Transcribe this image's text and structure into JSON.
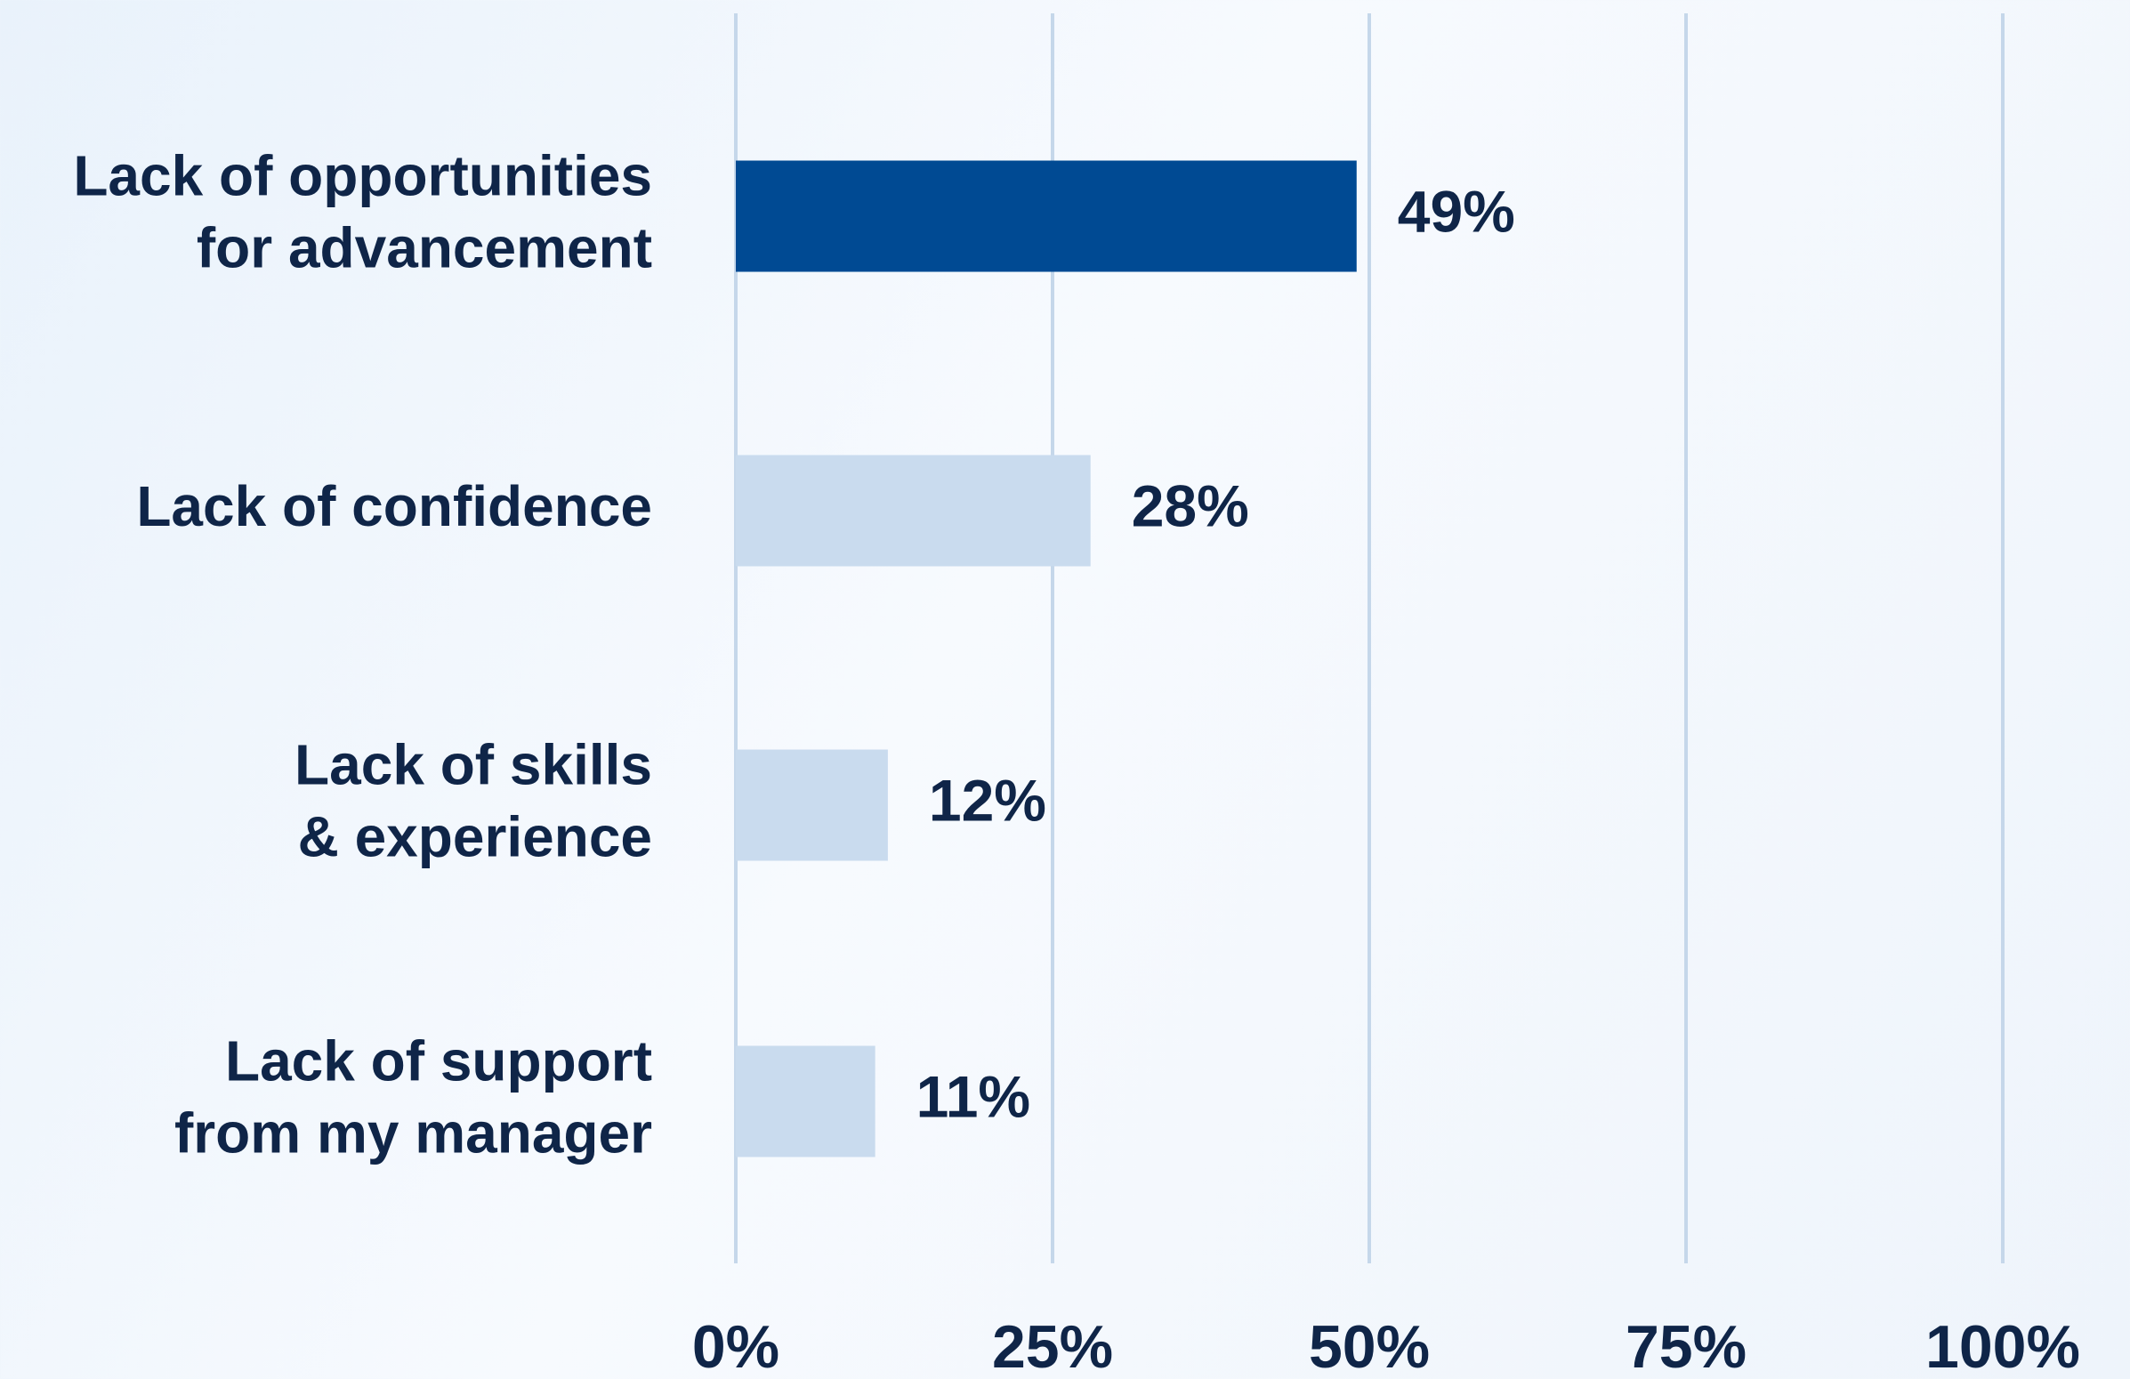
{
  "chart_data": {
    "type": "bar",
    "orientation": "horizontal",
    "categories": [
      [
        "Lack of opportunities",
        "for advancement"
      ],
      [
        "Lack of confidence"
      ],
      [
        "Lack of skills",
        "& experience"
      ],
      [
        "Lack of support",
        "from my manager"
      ]
    ],
    "values": [
      49,
      28,
      12,
      11
    ],
    "value_labels": [
      "49%",
      "28%",
      "12%",
      "11%"
    ],
    "colors": [
      "#004a93",
      "#c9dbee",
      "#c9dbee",
      "#c9dbee"
    ],
    "xlim": [
      0,
      100
    ],
    "xticks": [
      {
        "value": 0,
        "label": "0%"
      },
      {
        "value": 25,
        "label": "25%"
      },
      {
        "value": 50,
        "label": "50%"
      },
      {
        "value": 75,
        "label": "75%"
      },
      {
        "value": 100,
        "label": "100%"
      }
    ],
    "grid": true
  }
}
